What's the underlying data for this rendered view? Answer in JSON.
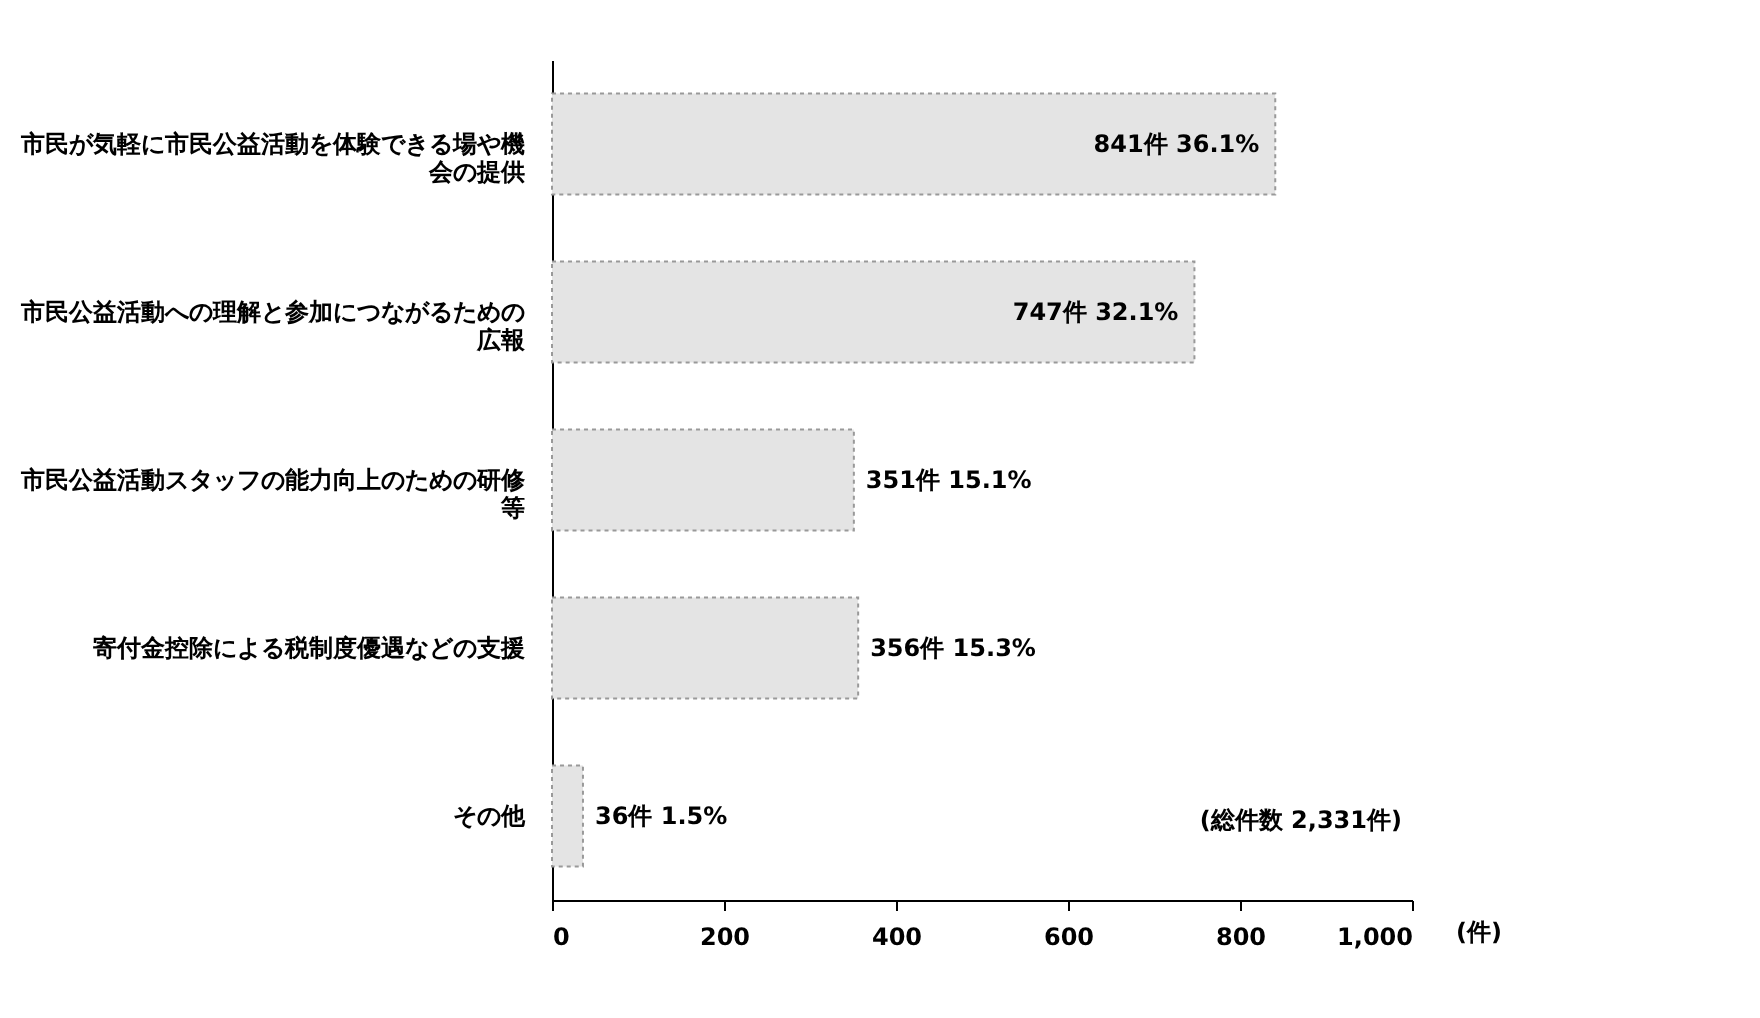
{
  "chart_data": {
    "type": "bar",
    "orientation": "horizontal",
    "categories": [
      "市民が気軽に市民公益活動を体験できる場や機会の提供",
      "市民公益活動への理解と参加につながるための広報",
      "市民公益活動スタッフの能力向上のための研修等",
      "寄付金控除による税制度優遇などの支援",
      "その他"
    ],
    "values": [
      841,
      747,
      351,
      356,
      36
    ],
    "value_labels": [
      "841件 36.1%",
      "747件 32.1%",
      "351件 15.1%",
      "356件 15.3%",
      "36件 1.5%"
    ],
    "color": "#e4e4e4",
    "xlabel": "(件)",
    "xlim": [
      0,
      1000
    ],
    "xticks": [
      0,
      200,
      400,
      600,
      800,
      {
        "value": 1000,
        "label": "1,000"
      }
    ],
    "annotations": [
      "(総件数 2,331件)"
    ],
    "grid": false
  }
}
